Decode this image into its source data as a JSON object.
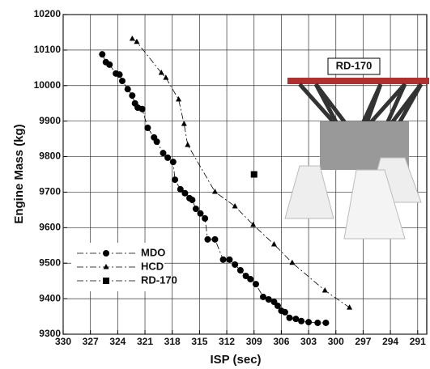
{
  "chart_data": {
    "type": "scatter",
    "xlabel": "ISP (sec)",
    "ylabel": "Engine Mass (kg)",
    "annotation": "RD-170",
    "xlim": [
      330,
      290
    ],
    "xticks": [
      330,
      327,
      324,
      321,
      318,
      315,
      312,
      309,
      306,
      303,
      300,
      297,
      294,
      291
    ],
    "ylim": [
      9300,
      10200
    ],
    "yticks": [
      9300,
      9400,
      9500,
      9600,
      9700,
      9800,
      9900,
      10000,
      10100,
      10200
    ],
    "grid": true,
    "legend": "lower left",
    "series": [
      {
        "name": "MDO",
        "color": "#000000",
        "marker": "circle",
        "x": [
          325.7,
          325.3,
          324.9,
          324.2,
          323.8,
          323.5,
          322.9,
          322.4,
          322.1,
          321.8,
          321.3,
          320.7,
          320.0,
          319.7,
          319.0,
          318.5,
          317.9,
          317.7,
          317.1,
          316.6,
          316.1,
          315.8,
          315.4,
          314.9,
          314.4,
          314.1,
          313.3,
          312.4,
          311.7,
          311.1,
          310.5,
          309.9,
          309.4,
          308.8,
          308.0,
          307.4,
          306.8,
          306.4,
          306.0,
          305.6,
          305.1,
          304.4,
          303.8,
          303.0,
          302.0,
          301.1
        ],
        "values": [
          10088,
          10066,
          10059,
          10034,
          10031,
          10013,
          9990,
          9972,
          9950,
          9938,
          9934,
          9881,
          9854,
          9842,
          9810,
          9797,
          9785,
          9735,
          9708,
          9697,
          9683,
          9678,
          9653,
          9640,
          9626,
          9567,
          9567,
          9510,
          9510,
          9496,
          9480,
          9464,
          9455,
          9441,
          9405,
          9398,
          9391,
          9380,
          9366,
          9362,
          9346,
          9343,
          9337,
          9334,
          9332,
          9332
        ]
      },
      {
        "name": "HCD",
        "color": "#000000",
        "marker": "triangle",
        "x": [
          322.4,
          321.9,
          319.2,
          318.7,
          317.3,
          316.7,
          316.3,
          313.3,
          311.1,
          309.1,
          306.8,
          304.8,
          301.2,
          298.5
        ],
        "values": [
          10132,
          10123,
          10036,
          10022,
          9961,
          9892,
          9833,
          9701,
          9660,
          9608,
          9553,
          9501,
          9423,
          9375
        ]
      },
      {
        "name": "RD-170",
        "color": "#000000",
        "marker": "square",
        "x": [
          309
        ],
        "values": [
          9750
        ]
      }
    ]
  }
}
